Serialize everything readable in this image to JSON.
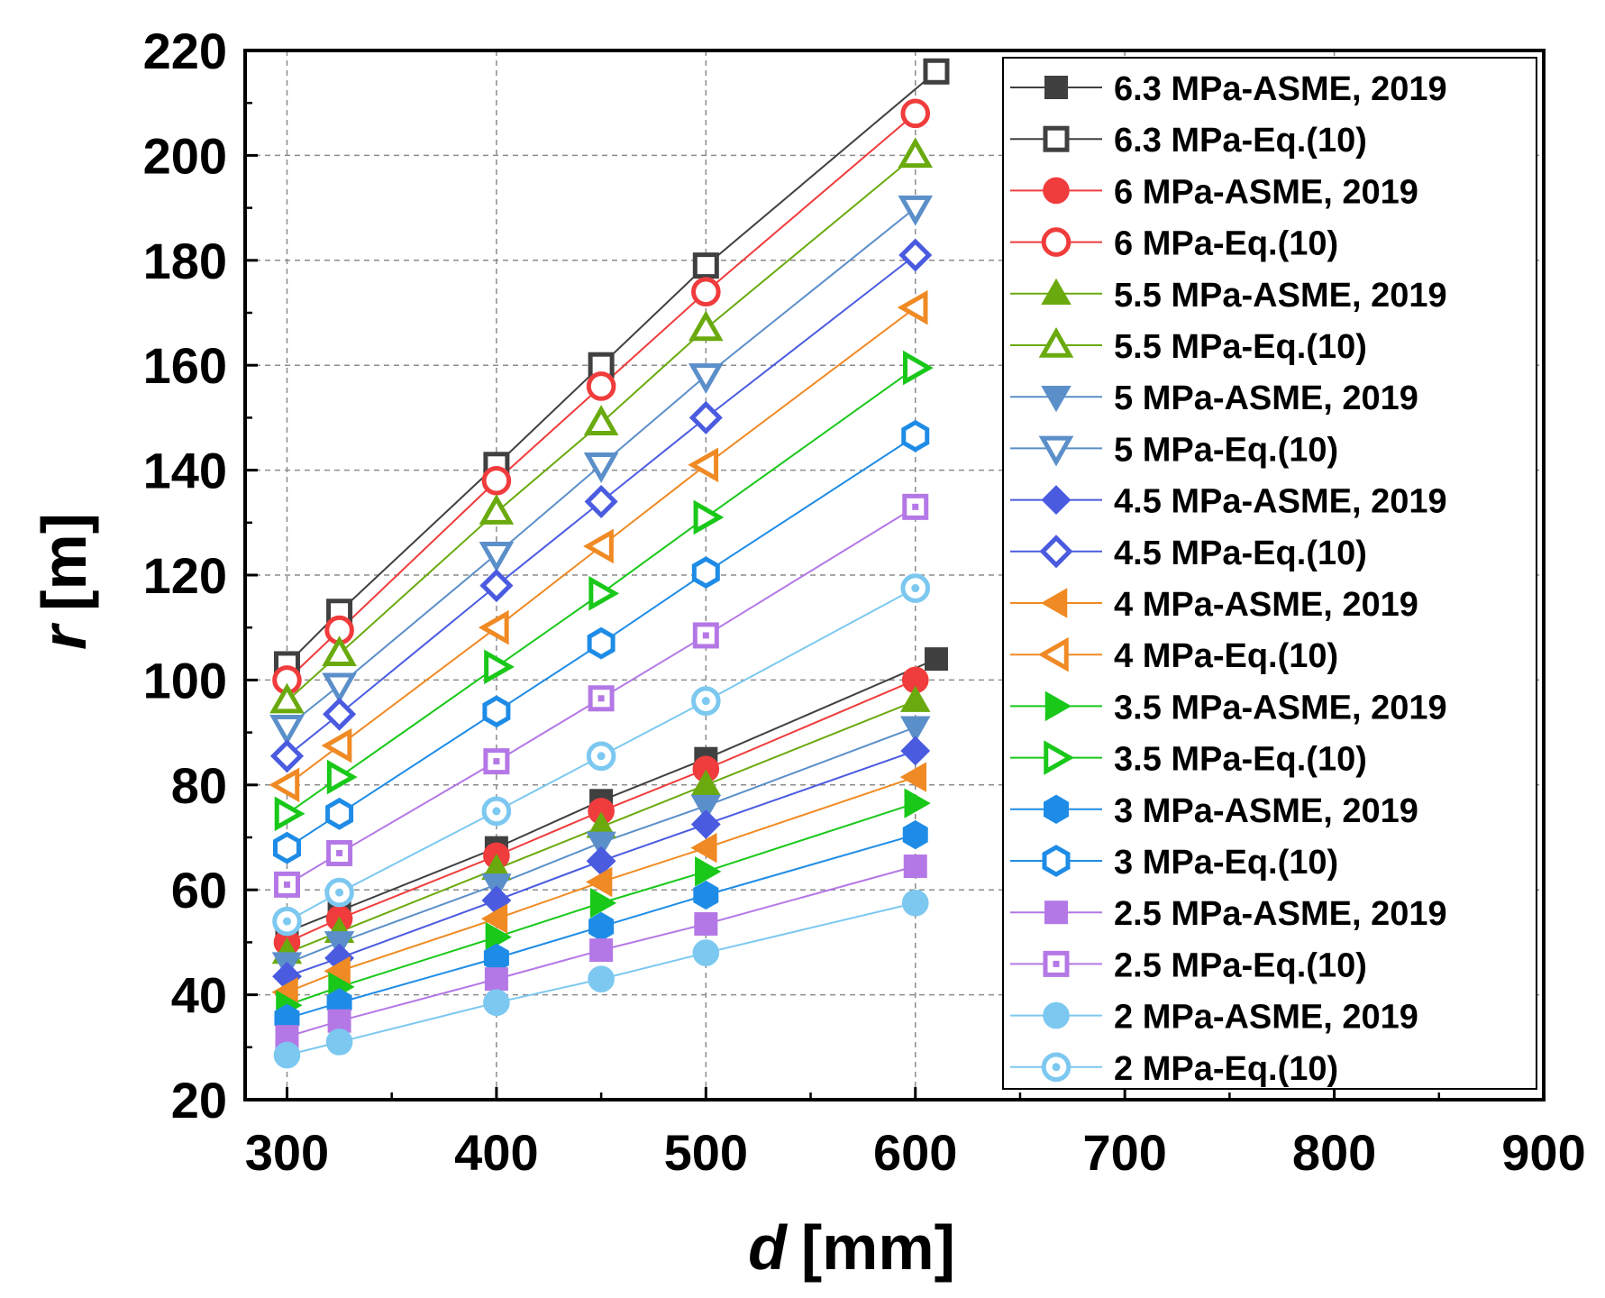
{
  "chart_data": {
    "type": "line",
    "title": "",
    "xlabel": {
      "var": "d",
      "unit": "[mm]"
    },
    "ylabel": {
      "var": "r",
      "unit": "[m]"
    },
    "xlim": [
      280,
      900
    ],
    "ylim": [
      20,
      220
    ],
    "xticks": [
      300,
      400,
      500,
      600,
      700,
      800,
      900
    ],
    "yticks": [
      20,
      40,
      60,
      80,
      100,
      120,
      140,
      160,
      180,
      200,
      220
    ],
    "grid": true,
    "legend_position": "top-right",
    "series": [
      {
        "name": "6.3 MPa-ASME, 2019",
        "color": "#404040",
        "marker": "square",
        "filled": true,
        "x": [
          300,
          325,
          400,
          450,
          500,
          610
        ],
        "y": [
          52,
          56,
          68,
          77,
          85,
          104
        ]
      },
      {
        "name": "6.3 MPa-Eq.(10)",
        "color": "#404040",
        "marker": "square",
        "filled": false,
        "x": [
          300,
          325,
          400,
          450,
          500,
          610
        ],
        "y": [
          103,
          113,
          141,
          160,
          179,
          216
        ]
      },
      {
        "name": "6 MPa-ASME, 2019",
        "color": "#f03c3c",
        "marker": "circle",
        "filled": true,
        "x": [
          300,
          325,
          400,
          450,
          500,
          600
        ],
        "y": [
          50,
          54.5,
          66.5,
          75,
          83,
          100
        ]
      },
      {
        "name": "6 MPa-Eq.(10)",
        "color": "#f03c3c",
        "marker": "circle",
        "filled": false,
        "x": [
          300,
          325,
          400,
          450,
          500,
          600
        ],
        "y": [
          100,
          109.5,
          138,
          156,
          174,
          208
        ]
      },
      {
        "name": "5.5 MPa-ASME, 2019",
        "color": "#6aaa0e",
        "marker": "triangle-up",
        "filled": true,
        "x": [
          300,
          325,
          400,
          450,
          500,
          600
        ],
        "y": [
          48,
          52,
          64,
          72,
          80,
          96
        ]
      },
      {
        "name": "5.5 MPa-Eq.(10)",
        "color": "#6aaa0e",
        "marker": "triangle-up",
        "filled": false,
        "x": [
          300,
          325,
          400,
          450,
          500,
          600
        ],
        "y": [
          96,
          105,
          132,
          149,
          167,
          200
        ]
      },
      {
        "name": "5 MPa-ASME, 2019",
        "color": "#5b8fc9",
        "marker": "triangle-down",
        "filled": true,
        "x": [
          300,
          325,
          400,
          450,
          500,
          600
        ],
        "y": [
          46,
          50,
          61,
          69,
          76,
          91
        ]
      },
      {
        "name": "5 MPa-Eq.(10)",
        "color": "#5b8fc9",
        "marker": "triangle-down",
        "filled": false,
        "x": [
          300,
          325,
          400,
          450,
          500,
          600
        ],
        "y": [
          91,
          99,
          124,
          141,
          158,
          190
        ]
      },
      {
        "name": "4.5 MPa-ASME, 2019",
        "color": "#4a5be0",
        "marker": "diamond",
        "filled": true,
        "x": [
          300,
          325,
          400,
          450,
          500,
          600
        ],
        "y": [
          43.5,
          47,
          58,
          65.5,
          72.5,
          86.5
        ]
      },
      {
        "name": "4.5 MPa-Eq.(10)",
        "color": "#4a5be0",
        "marker": "diamond",
        "filled": false,
        "x": [
          300,
          325,
          400,
          450,
          500,
          600
        ],
        "y": [
          85.5,
          93.5,
          118,
          134,
          150,
          181
        ]
      },
      {
        "name": "4 MPa-ASME, 2019",
        "color": "#f08a24",
        "marker": "triangle-left",
        "filled": true,
        "x": [
          300,
          325,
          400,
          450,
          500,
          600
        ],
        "y": [
          40.5,
          44.5,
          54.5,
          61.5,
          68,
          81.5
        ]
      },
      {
        "name": "4 MPa-Eq.(10)",
        "color": "#f08a24",
        "marker": "triangle-left",
        "filled": false,
        "x": [
          300,
          325,
          400,
          450,
          500,
          600
        ],
        "y": [
          80,
          87.5,
          110,
          125.5,
          141,
          171
        ]
      },
      {
        "name": "3.5 MPa-ASME, 2019",
        "color": "#19c819",
        "marker": "triangle-right",
        "filled": true,
        "x": [
          300,
          325,
          400,
          450,
          500,
          600
        ],
        "y": [
          38,
          41.5,
          51,
          57.5,
          63.5,
          76.5
        ]
      },
      {
        "name": "3.5 MPa-Eq.(10)",
        "color": "#19c819",
        "marker": "triangle-right",
        "filled": false,
        "x": [
          300,
          325,
          400,
          450,
          500,
          600
        ],
        "y": [
          74.5,
          81.5,
          102.5,
          116.5,
          131,
          159.5
        ]
      },
      {
        "name": "3 MPa-ASME, 2019",
        "color": "#1e8ce6",
        "marker": "hexagon",
        "filled": true,
        "x": [
          300,
          325,
          400,
          450,
          500,
          600
        ],
        "y": [
          35.5,
          38.5,
          47,
          53,
          59,
          70.5
        ]
      },
      {
        "name": "3 MPa-Eq.(10)",
        "color": "#1e8ce6",
        "marker": "hexagon",
        "filled": false,
        "x": [
          300,
          325,
          400,
          450,
          500,
          600
        ],
        "y": [
          68,
          74.5,
          94,
          107,
          120.5,
          146.5
        ]
      },
      {
        "name": "2.5 MPa-ASME, 2019",
        "color": "#b478e6",
        "marker": "square-dot",
        "filled": true,
        "x": [
          300,
          325,
          400,
          450,
          500,
          600
        ],
        "y": [
          32,
          35,
          43,
          48.5,
          53.5,
          64.5
        ]
      },
      {
        "name": "2.5 MPa-Eq.(10)",
        "color": "#b478e6",
        "marker": "square-dot",
        "filled": false,
        "x": [
          300,
          325,
          400,
          450,
          500,
          600
        ],
        "y": [
          61,
          67,
          84.5,
          96.5,
          108.5,
          133
        ]
      },
      {
        "name": "2 MPa-ASME, 2019",
        "color": "#7cc8f0",
        "marker": "circle-dot",
        "filled": true,
        "x": [
          300,
          325,
          400,
          450,
          500,
          600
        ],
        "y": [
          28.5,
          31,
          38.5,
          43,
          48,
          57.5
        ]
      },
      {
        "name": "2 MPa-Eq.(10)",
        "color": "#7cc8f0",
        "marker": "circle-dot",
        "filled": false,
        "x": [
          300,
          325,
          400,
          450,
          500,
          600
        ],
        "y": [
          54,
          59.5,
          75,
          85.5,
          96,
          117.5
        ]
      }
    ]
  }
}
